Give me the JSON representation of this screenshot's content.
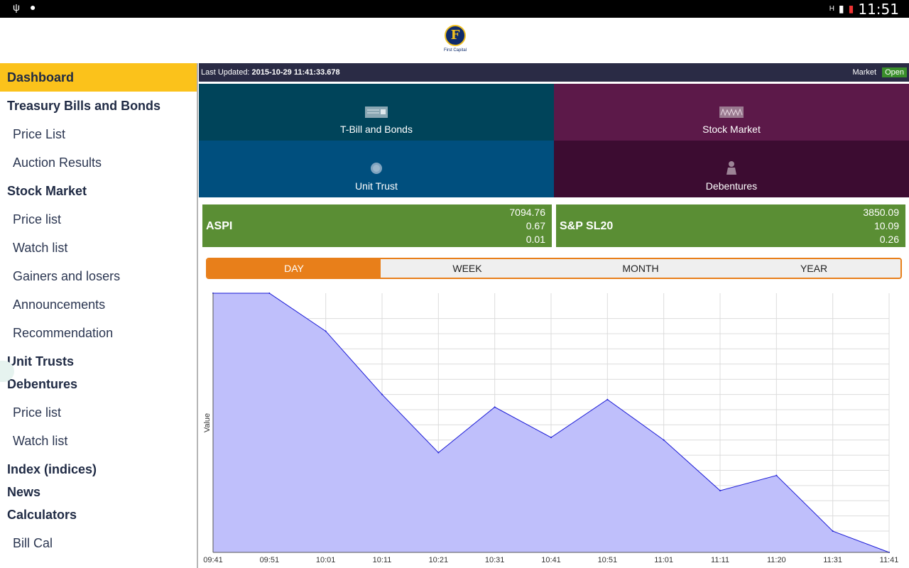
{
  "status": {
    "time": "11:51"
  },
  "header": {
    "logo_text": "First Capital"
  },
  "sidebar": {
    "sections": [
      {
        "title": "Dashboard",
        "active": true,
        "items": []
      },
      {
        "title": "Treasury Bills and Bonds",
        "items": [
          "Price List",
          "Auction Results"
        ]
      },
      {
        "title": "Stock Market",
        "items": [
          "Price list",
          "Watch list",
          "Gainers and losers",
          "Announcements",
          "Recommendation"
        ]
      },
      {
        "title": "Unit Trusts",
        "items": []
      },
      {
        "title": "Debentures",
        "items": [
          "Price list",
          "Watch list"
        ]
      },
      {
        "title": "Index (indices)",
        "items": []
      },
      {
        "title": "News",
        "items": []
      },
      {
        "title": "Calculators",
        "items": [
          "Bill Cal"
        ]
      }
    ]
  },
  "infobar": {
    "last_updated_label": "Last Updated:",
    "last_updated_value": "2015-10-29 11:41:33.678",
    "market_label": "Market",
    "market_status": "Open"
  },
  "tiles": [
    {
      "label": "T-Bill and Bonds",
      "icon": "bill-icon"
    },
    {
      "label": "Stock Market",
      "icon": "stock-chart-icon"
    },
    {
      "label": "Unit Trust",
      "icon": "coin-icon"
    },
    {
      "label": "Debentures",
      "icon": "person-icon"
    }
  ],
  "indices": [
    {
      "name": "ASPI",
      "value": "7094.76",
      "change": "0.67",
      "percent": "0.01"
    },
    {
      "name": "S&P SL20",
      "value": "3850.09",
      "change": "10.09",
      "percent": "0.26"
    }
  ],
  "period_tabs": [
    "DAY",
    "WEEK",
    "MONTH",
    "YEAR"
  ],
  "active_period": "DAY",
  "colors": {
    "accent": "#fbc21b",
    "tab_accent": "#e87f1a",
    "index_green": "#5a8e34",
    "area_fill": "#bfbffb",
    "line": "#1a1ad6"
  },
  "chart_data": {
    "type": "area",
    "ylabel": "Value",
    "x": [
      "09:41",
      "09:51",
      "10:01",
      "10:11",
      "10:21",
      "10:31",
      "10:41",
      "10:51",
      "11:01",
      "11:11",
      "11:20",
      "11:31",
      "11:41"
    ],
    "values": [
      7105.0,
      7105.0,
      7103.5,
      7101.0,
      7098.7,
      7100.5,
      7099.3,
      7100.8,
      7099.2,
      7097.2,
      7097.8,
      7095.6,
      7094.76
    ],
    "yticks": [
      "7104.0",
      "7103.4",
      "7102.8",
      "7102.2",
      "7101.6",
      "7101.0",
      "7100.4",
      "7099.8",
      "7099.2",
      "7098.6",
      "7098.0",
      "7097.4",
      "7096.8",
      "7096.2",
      "7095.6"
    ],
    "ylim": [
      7094.76,
      7105.0
    ],
    "grid": true
  }
}
